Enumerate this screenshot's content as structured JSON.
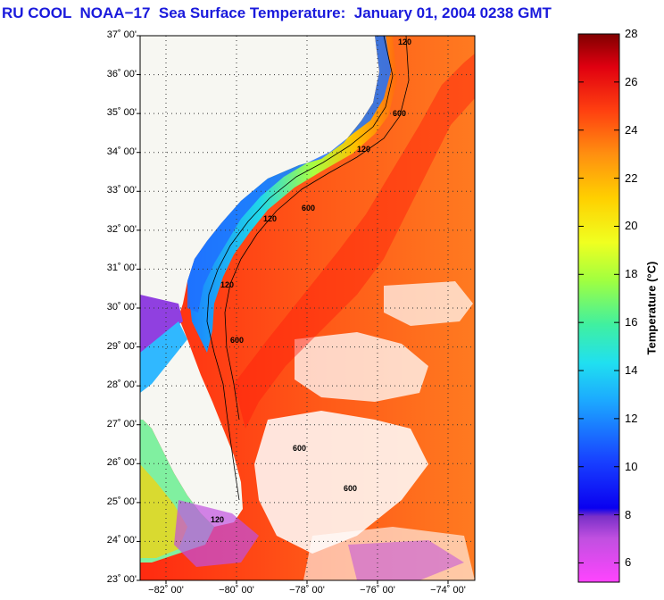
{
  "title": "RU COOL  NOAA−17  Sea Surface Temperature:  January 01, 2004 0238 GMT",
  "lat_ticks": [
    "37˚ 00'",
    "36˚ 00'",
    "35˚ 00'",
    "34˚ 00'",
    "33˚ 00'",
    "32˚ 00'",
    "31˚ 00'",
    "30˚ 00'",
    "29˚ 00'",
    "28˚ 00'",
    "27˚ 00'",
    "26˚ 00'",
    "25˚ 00'",
    "24˚ 00'",
    "23˚ 00'"
  ],
  "lon_ticks": [
    "−82˚ 00'",
    "−80˚ 00'",
    "−78˚ 00'",
    "−76˚ 00'",
    "−74˚ 00'"
  ],
  "colorbar": {
    "label": "Temperature (°C)",
    "ticks": [
      "28",
      "26",
      "24",
      "22",
      "20",
      "18",
      "16",
      "14",
      "12",
      "10",
      "8",
      "6"
    ]
  },
  "contour_labels": [
    "120",
    "600",
    "120",
    "600",
    "120",
    "600",
    "120",
    "600",
    "120",
    "600"
  ],
  "colors": {
    "title": "#1a1adc",
    "land": "#f7f7f2",
    "warm": "#ff3a10",
    "cold": "#1f7bff"
  }
}
